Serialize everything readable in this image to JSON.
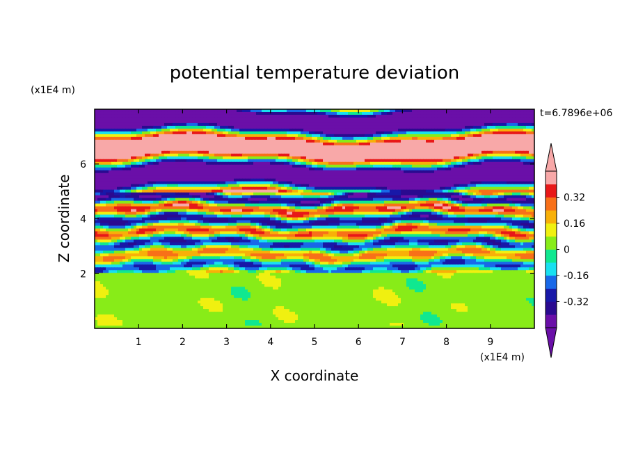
{
  "chart_data": {
    "type": "heatmap",
    "title": "potential temperature deviation",
    "xlabel": "X coordinate",
    "ylabel": "Z coordinate",
    "x_unit": "(x1E4 m)",
    "y_unit": "(x1E4 m)",
    "time_label": "t=6.7896e+06",
    "xlim": [
      0,
      10
    ],
    "ylim": [
      0,
      8
    ],
    "x_ticks": [
      "1",
      "2",
      "3",
      "4",
      "5",
      "6",
      "7",
      "8",
      "9"
    ],
    "y_ticks": [
      "2",
      "4",
      "6"
    ],
    "colorbar": {
      "levels": [
        -0.48,
        -0.4,
        -0.32,
        -0.24,
        -0.16,
        -0.08,
        0,
        0.08,
        0.16,
        0.24,
        0.32,
        0.4,
        0.48
      ],
      "colors": [
        "#6a0fa8",
        "#2a0a90",
        "#1818a8",
        "#1868e8",
        "#18e0f0",
        "#10e890",
        "#88ec18",
        "#f0f010",
        "#f8b008",
        "#f87018",
        "#e81818",
        "#f8a8a8"
      ],
      "labels": [
        "0.32",
        "0.16",
        "0",
        "-0.16",
        "-0.32"
      ],
      "label_values": [
        0.32,
        0.16,
        0,
        -0.16,
        -0.32
      ],
      "under_color": "#6a0fa8",
      "over_color": "#f8a8a8"
    }
  }
}
